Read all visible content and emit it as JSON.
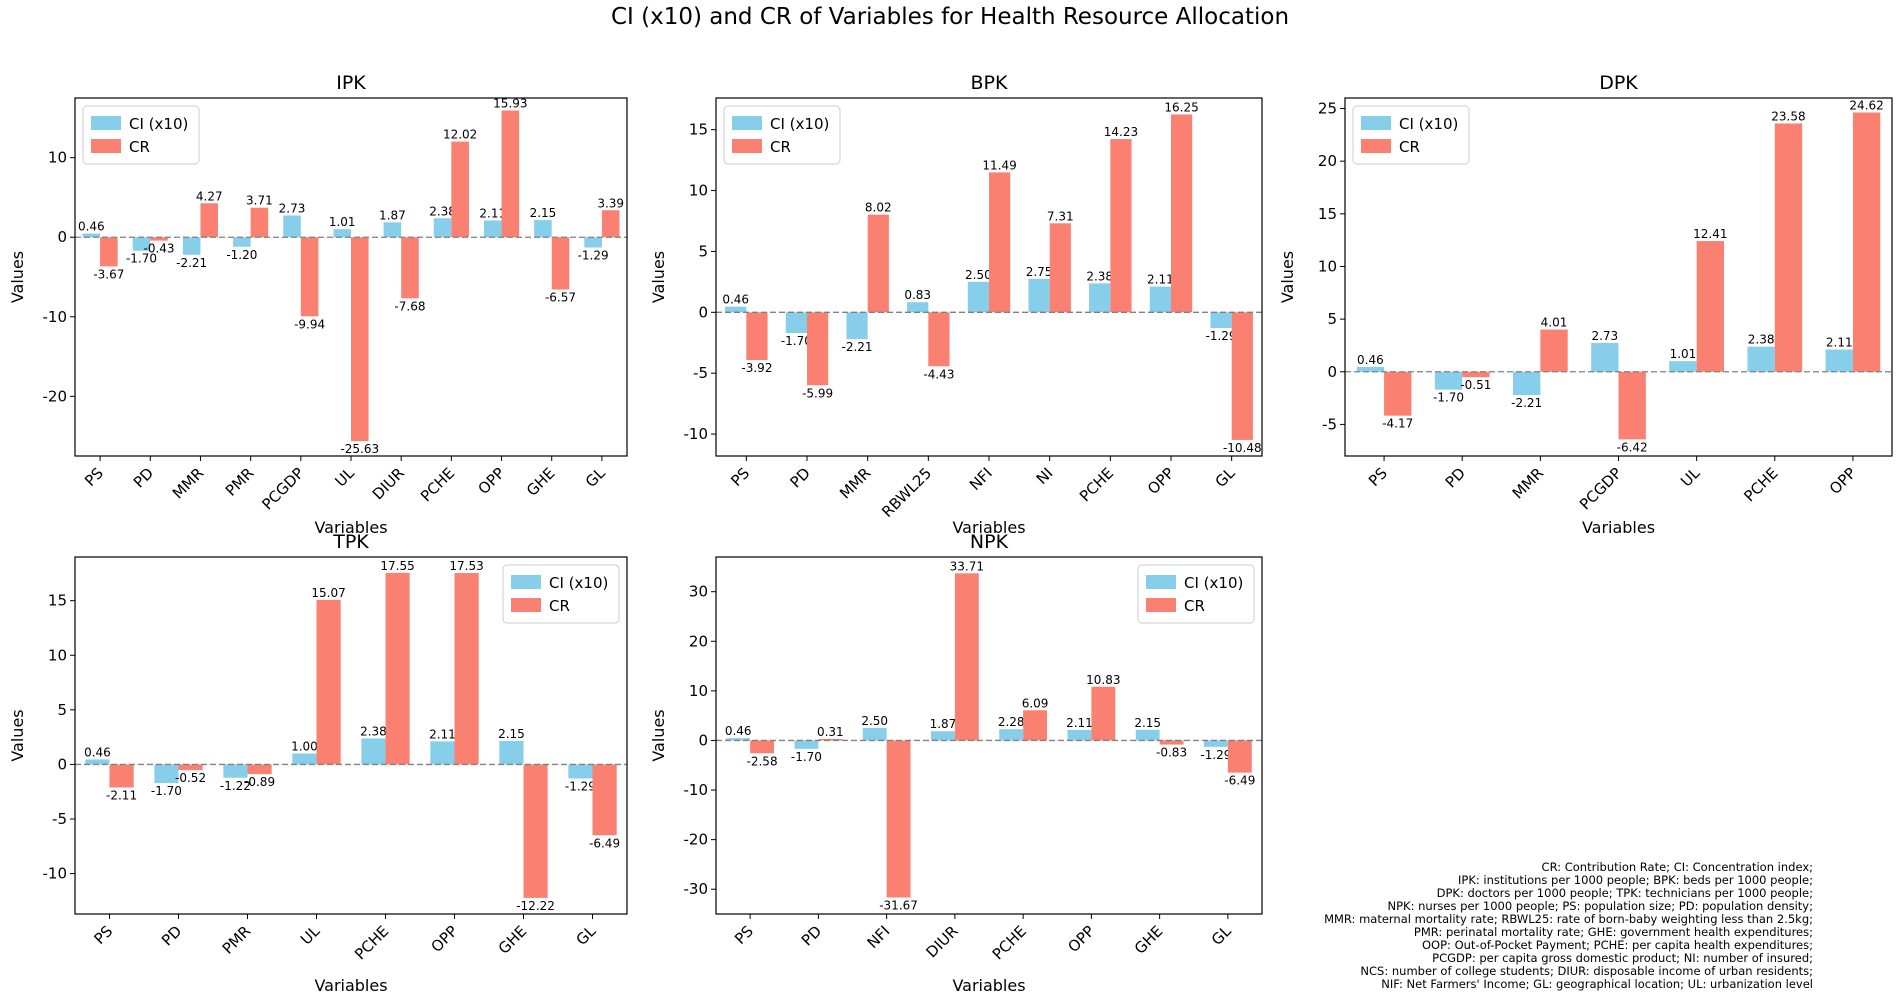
{
  "figure": {
    "title": "CI (x10) and CR of Variables for Health Resource Allocation",
    "notes": [
      "CR: Contribution Rate; CI: Concentration index;",
      "IPK: institutions per 1000 people; BPK: beds per 1000 people;",
      "DPK: doctors per 1000 people; TPK: technicians per 1000 people;",
      "NPK: nurses per 1000 people; PS: population size; PD: population density;",
      "MMR: maternal mortality rate; RBWL25: rate of born-baby weighting less than 2.5kg;",
      "PMR: perinatal mortality rate; GHE: government health expenditures;",
      "OOP: Out-of-Pocket Payment; PCHE: per capita health expenditures;",
      "PCGDP: per capita gross domestic product; NI: number of insured;",
      "NCS: number of college students; DIUR: disposable income of urban residents;",
      "NIF: Net Farmers' Income; GL: geographical location; UL: urbanization level"
    ]
  },
  "colors": {
    "ci": "#87ceeb",
    "cr": "#fa8072",
    "zero_line": "#808080"
  },
  "chart_data": [
    {
      "type": "bar",
      "title": "IPK",
      "xlabel": "Variables",
      "ylabel": "Values",
      "legend": "top-left",
      "categories": [
        "PS",
        "PD",
        "MMR",
        "PMR",
        "PCGDP",
        "UL",
        "DIUR",
        "PCHE",
        "OPP",
        "GHE",
        "GL"
      ],
      "series": [
        {
          "name": "CI (x10)",
          "values": [
            0.46,
            -1.7,
            -2.21,
            -1.2,
            2.73,
            1.01,
            1.87,
            2.38,
            2.11,
            2.15,
            -1.29
          ]
        },
        {
          "name": "CR",
          "values": [
            -3.67,
            -0.43,
            4.27,
            3.71,
            -9.94,
            -25.63,
            -7.68,
            12.02,
            15.93,
            -6.57,
            3.39
          ]
        }
      ],
      "ylim": [
        -27.5,
        17.5
      ],
      "yticks": [
        -20,
        -10,
        0,
        10
      ]
    },
    {
      "type": "bar",
      "title": "BPK",
      "xlabel": "Variables",
      "ylabel": "Values",
      "legend": "top-left",
      "categories": [
        "PS",
        "PD",
        "MMR",
        "RBWL25",
        "NFI",
        "NI",
        "PCHE",
        "OPP",
        "GL"
      ],
      "series": [
        {
          "name": "CI (x10)",
          "values": [
            0.46,
            -1.7,
            -2.21,
            0.83,
            2.5,
            2.75,
            2.38,
            2.11,
            -1.29
          ]
        },
        {
          "name": "CR",
          "values": [
            -3.92,
            -5.99,
            8.02,
            -4.43,
            11.49,
            7.31,
            14.23,
            16.25,
            -10.48
          ]
        }
      ],
      "ylim": [
        -11.8,
        17.6
      ],
      "yticks": [
        -10,
        -5,
        0,
        5,
        10,
        15
      ]
    },
    {
      "type": "bar",
      "title": "DPK",
      "xlabel": "Variables",
      "ylabel": "Values",
      "legend": "top-left",
      "categories": [
        "PS",
        "PD",
        "MMR",
        "PCGDP",
        "UL",
        "PCHE",
        "OPP"
      ],
      "series": [
        {
          "name": "CI (x10)",
          "values": [
            0.46,
            -1.7,
            -2.21,
            2.73,
            1.01,
            2.38,
            2.11
          ]
        },
        {
          "name": "CR",
          "values": [
            -4.17,
            -0.51,
            4.01,
            -6.42,
            12.41,
            23.58,
            24.62
          ]
        }
      ],
      "ylim": [
        -8.0,
        26.0
      ],
      "yticks": [
        -5,
        0,
        5,
        10,
        15,
        20,
        25
      ]
    },
    {
      "type": "bar",
      "title": "TPK",
      "xlabel": "Variables",
      "ylabel": "Values",
      "legend": "top-right",
      "categories": [
        "PS",
        "PD",
        "PMR",
        "UL",
        "PCHE",
        "OPP",
        "GHE",
        "GL"
      ],
      "series": [
        {
          "name": "CI (x10)",
          "values": [
            0.46,
            -1.7,
            -1.22,
            1.0,
            2.38,
            2.11,
            2.15,
            -1.29
          ]
        },
        {
          "name": "CR",
          "values": [
            -2.11,
            -0.52,
            -0.89,
            15.07,
            17.55,
            17.53,
            -12.22,
            -6.49
          ]
        }
      ],
      "ylim": [
        -13.7,
        19.0
      ],
      "yticks": [
        -10,
        -5,
        0,
        5,
        10,
        15
      ]
    },
    {
      "type": "bar",
      "title": "NPK",
      "xlabel": "Variables",
      "ylabel": "Values",
      "legend": "top-right",
      "categories": [
        "PS",
        "PD",
        "NFI",
        "DIUR",
        "PCHE",
        "OPP",
        "GHE",
        "GL"
      ],
      "series": [
        {
          "name": "CI (x10)",
          "values": [
            0.46,
            -1.7,
            2.5,
            1.87,
            2.28,
            2.11,
            2.15,
            -1.29
          ]
        },
        {
          "name": "CR",
          "values": [
            -2.58,
            0.31,
            -31.67,
            33.71,
            6.09,
            10.83,
            -0.83,
            -6.49
          ]
        }
      ],
      "ylim": [
        -35.0,
        37.0
      ],
      "yticks": [
        -30,
        -20,
        -10,
        0,
        10,
        20,
        30
      ]
    }
  ]
}
